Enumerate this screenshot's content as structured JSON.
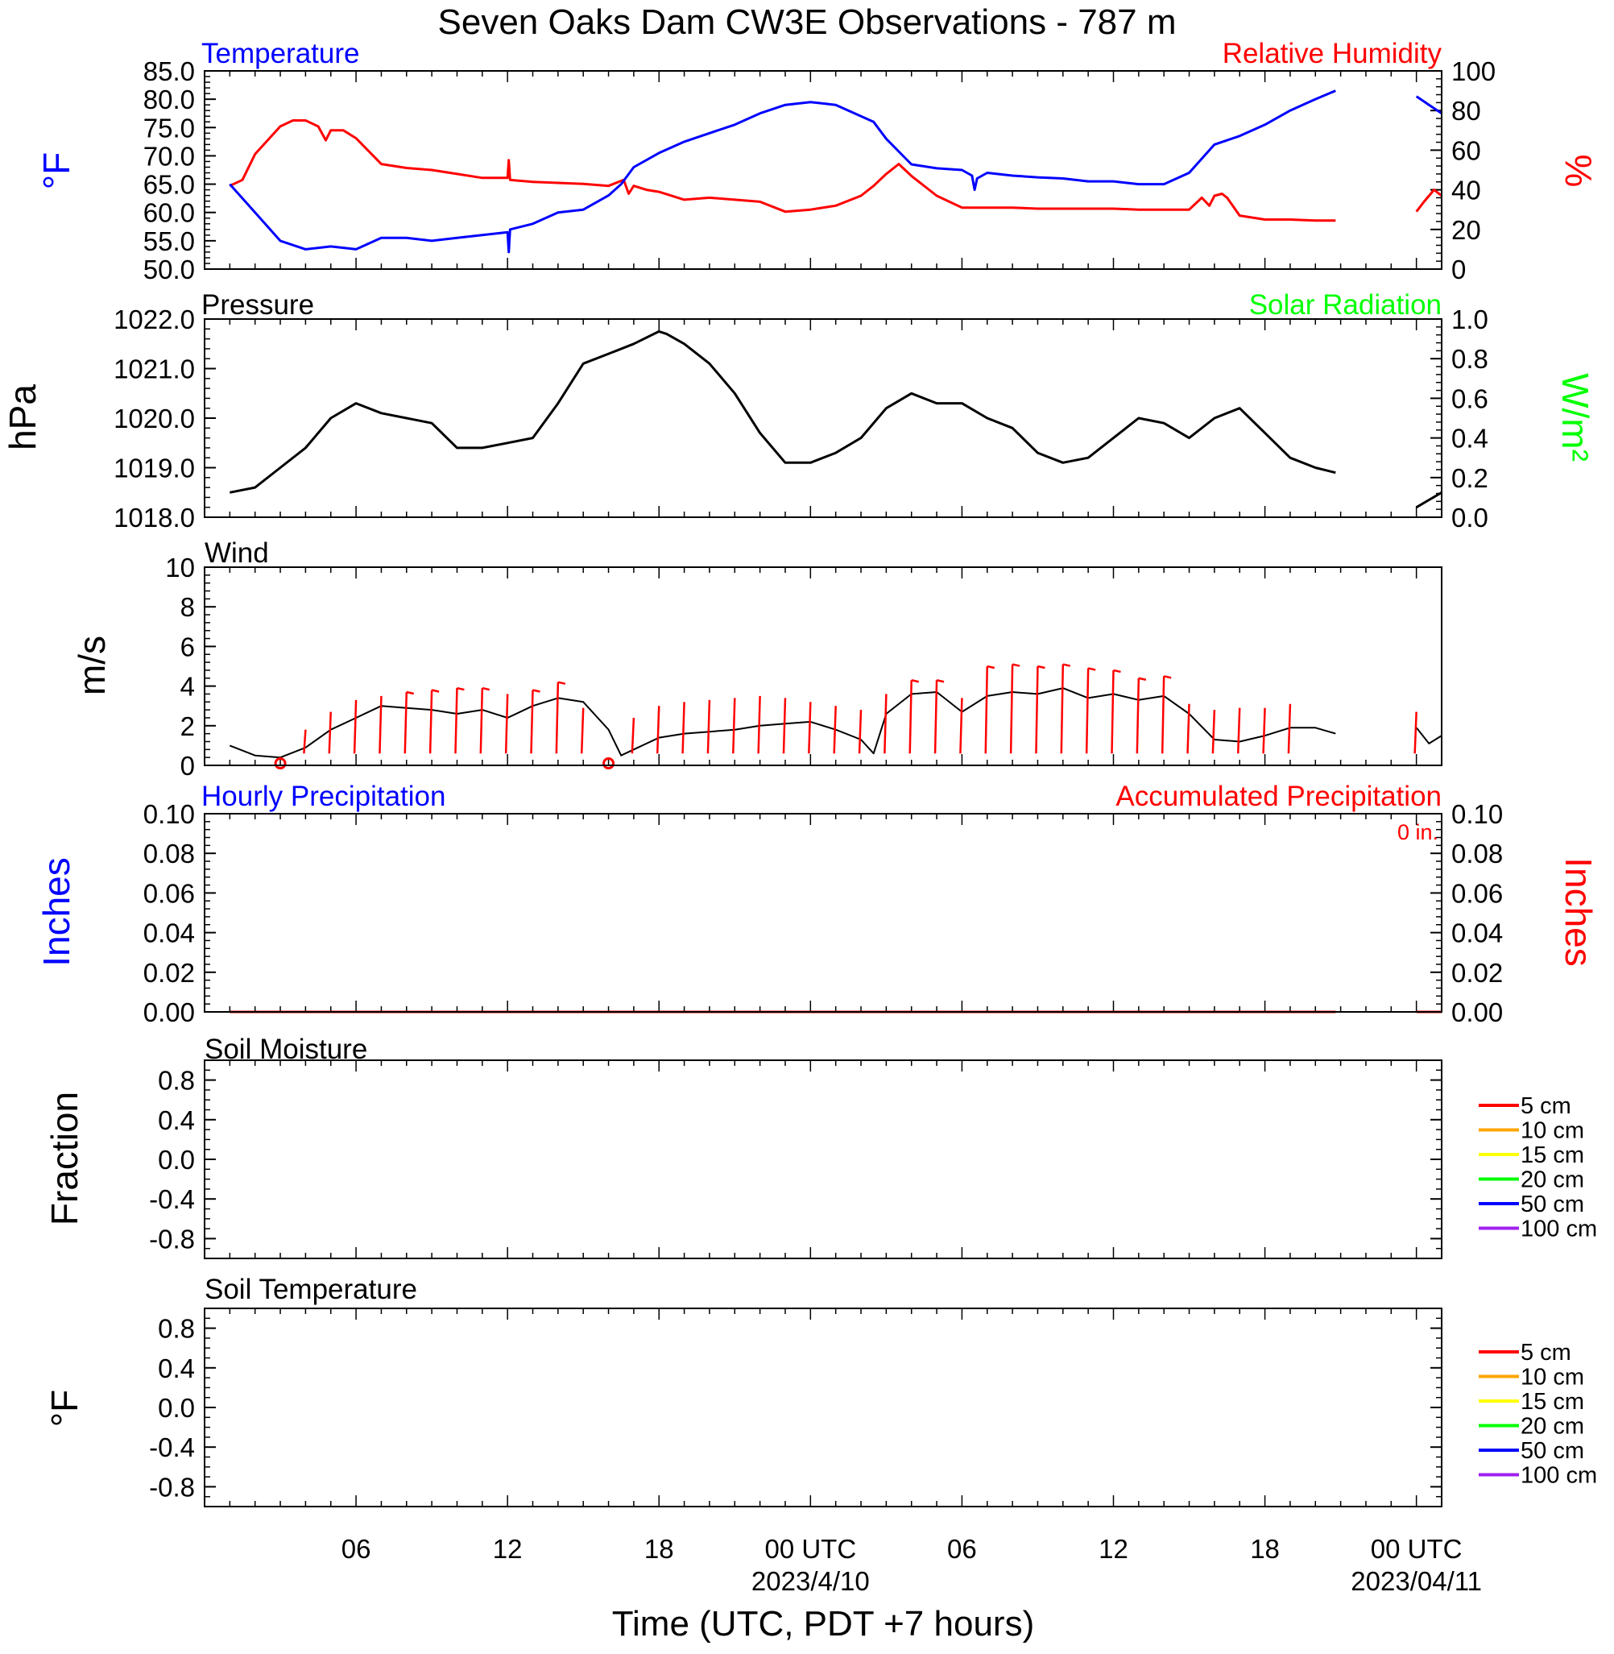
{
  "title": "Seven Oaks Dam CW3E Observations - 787 m",
  "x_axis": {
    "label": "Time (UTC, PDT +7 hours)",
    "start": "2023-04-09T01:00Z",
    "end": "2023-04-11T02:00Z",
    "ticks": [
      {
        "hour": 5,
        "label": "06"
      },
      {
        "hour": 11,
        "label": "12"
      },
      {
        "hour": 17,
        "label": "18"
      },
      {
        "hour": 23,
        "label": "00 UTC",
        "date": "2023/4/10"
      },
      {
        "hour": 29,
        "label": "06"
      },
      {
        "hour": 35,
        "label": "12"
      },
      {
        "hour": 41,
        "label": "18"
      },
      {
        "hour": 47,
        "label": "00 UTC",
        "date": "2023/04/11"
      }
    ]
  },
  "colors": {
    "temperature": "#0000ff",
    "humidity": "#ff0000",
    "pressure": "#000000",
    "solar": "#00ff00",
    "wind": "#000000",
    "wind_barb": "#ff0000",
    "hourly_precip": "#0000ff",
    "accum_precip": "#ff0000"
  },
  "panels": {
    "temperature": {
      "title_left": "Temperature",
      "title_right": "Relative Humidity",
      "ylabel_left": "°F",
      "ylabel_right": "%",
      "left_ticks": [
        "50.0",
        "55.0",
        "60.0",
        "65.0",
        "70.0",
        "75.0",
        "80.0",
        "85.0"
      ],
      "right_ticks": [
        "0",
        "20",
        "40",
        "60",
        "80",
        "100"
      ]
    },
    "pressure": {
      "title_left": "Pressure",
      "title_right": "Solar Radiation",
      "ylabel_left": "hPa",
      "ylabel_right": "W/m²",
      "left_ticks": [
        "1018.0",
        "1019.0",
        "1020.0",
        "1021.0",
        "1022.0"
      ],
      "right_ticks": [
        "0.0",
        "0.2",
        "0.4",
        "0.6",
        "0.8",
        "1.0"
      ]
    },
    "wind": {
      "title_left": "Wind",
      "ylabel_left": "m/s",
      "left_ticks": [
        "0",
        "2",
        "4",
        "6",
        "8",
        "10"
      ]
    },
    "precip": {
      "title_left": "Hourly Precipitation",
      "title_right": "Accumulated Precipitation",
      "accum_total": "0 in.",
      "ylabel_left": "Inches",
      "ylabel_right": "Inches",
      "left_ticks": [
        "0.00",
        "0.02",
        "0.04",
        "0.06",
        "0.08",
        "0.10"
      ],
      "right_ticks": [
        "0.00",
        "0.02",
        "0.04",
        "0.06",
        "0.08",
        "0.10"
      ]
    },
    "soil_moisture": {
      "title_left": "Soil Moisture",
      "ylabel_left": "Fraction",
      "left_ticks": [
        "-0.8",
        "-0.4",
        "0.0",
        "0.4",
        "0.8"
      ]
    },
    "soil_temperature": {
      "title_left": "Soil Temperature",
      "ylabel_left": "°F",
      "left_ticks": [
        "-0.8",
        "-0.4",
        "0.0",
        "0.4",
        "0.8"
      ]
    }
  },
  "soil_legend": [
    {
      "label": "5 cm",
      "color": "#ff0000"
    },
    {
      "label": "10 cm",
      "color": "#ffa500"
    },
    {
      "label": "15 cm",
      "color": "#ffff00"
    },
    {
      "label": "20 cm",
      "color": "#00ff00"
    },
    {
      "label": "50 cm",
      "color": "#0000ff"
    },
    {
      "label": "100 cm",
      "color": "#a020f0"
    }
  ],
  "chart_data": [
    {
      "type": "line",
      "title": "Temperature",
      "ylabel": "°F",
      "ylim": [
        50,
        85
      ],
      "x_units": "hours since 2023-04-09 01:00 UTC",
      "series": [
        {
          "name": "Temperature",
          "x": [
            0,
            1,
            2,
            3,
            4,
            5,
            6,
            7,
            8,
            9,
            10,
            11,
            11.05,
            11.1,
            12,
            13,
            14,
            15,
            15.5,
            16,
            17,
            18,
            19,
            20,
            21,
            22,
            23,
            24,
            25,
            25.5,
            26,
            27,
            28,
            29,
            29.4,
            29.5,
            29.6,
            30,
            31,
            32,
            33,
            34,
            35,
            36,
            37,
            38,
            39,
            40,
            41,
            42,
            43,
            43.8
          ],
          "y": [
            65,
            60,
            55,
            53.5,
            54,
            53.5,
            55.5,
            55.5,
            55,
            55.5,
            56,
            56.5,
            53,
            57,
            58,
            60,
            60.5,
            63,
            65,
            68,
            70.5,
            72.5,
            74,
            75.5,
            77.5,
            79,
            79.5,
            79,
            77,
            76,
            73,
            68.5,
            67.8,
            67.5,
            66.5,
            64,
            66,
            67,
            66.5,
            66.2,
            66,
            65.5,
            65.5,
            65,
            65,
            67,
            72,
            73.5,
            75.5,
            78,
            80,
            81.5
          ]
        },
        {
          "name": "Temperature",
          "x": [
            47,
            47.5,
            48
          ],
          "y": [
            80.5,
            79,
            77.5
          ]
        }
      ]
    },
    {
      "type": "line",
      "title": "Relative Humidity",
      "ylabel": "%",
      "ylim": [
        0,
        100
      ],
      "x_units": "hours since 2023-04-09 01:00 UTC",
      "series": [
        {
          "name": "Relative Humidity",
          "x": [
            0,
            0.5,
            1,
            2,
            2.5,
            3,
            3.5,
            3.8,
            4,
            4.5,
            5,
            6,
            7,
            8,
            9,
            10,
            11,
            11.05,
            11.1,
            12,
            13,
            14,
            15,
            15.5,
            15.6,
            15.8,
            16,
            16.5,
            17,
            18,
            19,
            20,
            21,
            22,
            23,
            24,
            25,
            25.5,
            26,
            26.5,
            27,
            28,
            29,
            30,
            31,
            32,
            33,
            34,
            35,
            36,
            37,
            38,
            38.5,
            38.8,
            39,
            39.3,
            39.5,
            40,
            41,
            42,
            43,
            43.8
          ],
          "y": [
            42,
            45,
            58,
            72,
            75,
            75,
            72,
            65,
            70,
            70,
            66,
            53,
            51,
            50,
            48,
            46,
            46,
            55,
            45,
            44,
            43.5,
            43,
            42,
            44.5,
            45,
            38,
            42,
            40,
            39,
            35,
            36,
            35,
            34,
            29,
            30,
            32,
            37,
            42,
            48,
            53,
            47,
            37,
            31,
            31,
            31,
            30.5,
            30.5,
            30.5,
            30.5,
            30,
            30,
            30,
            36,
            32,
            37,
            38,
            36,
            27,
            25,
            25,
            24.5,
            24.5
          ]
        },
        {
          "name": "Relative Humidity",
          "x": [
            47,
            47.3,
            47.7,
            48
          ],
          "y": [
            29,
            34,
            40,
            37
          ]
        }
      ]
    },
    {
      "type": "line",
      "title": "Pressure",
      "ylabel": "hPa",
      "ylim": [
        1018,
        1022
      ],
      "x_units": "hours since 2023-04-09 01:00 UTC",
      "series": [
        {
          "name": "Pressure",
          "x": [
            0,
            1,
            2,
            3,
            4,
            5,
            6,
            7,
            8,
            9,
            10,
            11,
            12,
            13,
            14,
            15,
            16,
            17,
            17.3,
            18,
            19,
            20,
            21,
            22,
            23,
            24,
            25,
            26,
            27,
            28,
            29,
            30,
            31,
            32,
            33,
            34,
            35,
            36,
            37,
            38,
            39,
            40,
            41,
            42,
            43,
            43.8
          ],
          "y": [
            1018.5,
            1018.6,
            1019.0,
            1019.4,
            1020.0,
            1020.3,
            1020.1,
            1020.0,
            1019.9,
            1019.4,
            1019.4,
            1019.5,
            1019.6,
            1020.3,
            1021.1,
            1021.3,
            1021.5,
            1021.75,
            1021.7,
            1021.5,
            1021.1,
            1020.5,
            1019.7,
            1019.1,
            1019.1,
            1019.3,
            1019.6,
            1020.2,
            1020.5,
            1020.3,
            1020.3,
            1020.0,
            1019.8,
            1019.3,
            1019.1,
            1019.2,
            1019.6,
            1020.0,
            1019.9,
            1019.6,
            1020.0,
            1020.2,
            1019.7,
            1019.2,
            1019.0,
            1018.9
          ]
        },
        {
          "name": "Pressure",
          "x": [
            47,
            47.5,
            48
          ],
          "y": [
            1018.2,
            1018.35,
            1018.5
          ]
        }
      ]
    },
    {
      "type": "line",
      "title": "Wind",
      "ylabel": "m/s",
      "ylim": [
        0,
        10
      ],
      "x_units": "hours since 2023-04-09 01:00 UTC",
      "series": [
        {
          "name": "Wind",
          "x": [
            0,
            1,
            2,
            3,
            4,
            5,
            6,
            7,
            8,
            9,
            10,
            11,
            12,
            13,
            14,
            15,
            15.5,
            16,
            17,
            18,
            19,
            20,
            21,
            22,
            23,
            24,
            25,
            25.5,
            26,
            27,
            28,
            29,
            30,
            31,
            32,
            33,
            34,
            35,
            36,
            37,
            38,
            39,
            40,
            41,
            42,
            43,
            43.8
          ],
          "y": [
            1.0,
            0.5,
            0.4,
            0.9,
            1.8,
            2.4,
            3.0,
            2.9,
            2.8,
            2.6,
            2.8,
            2.4,
            3.0,
            3.4,
            3.2,
            1.8,
            0.5,
            0.8,
            1.4,
            1.6,
            1.7,
            1.8,
            2.0,
            2.1,
            2.2,
            1.8,
            1.3,
            0.6,
            2.6,
            3.6,
            3.7,
            2.7,
            3.5,
            3.7,
            3.6,
            3.9,
            3.4,
            3.6,
            3.3,
            3.5,
            2.6,
            1.3,
            1.2,
            1.5,
            1.9,
            1.9,
            1.6
          ]
        },
        {
          "name": "Wind",
          "x": [
            47,
            47.5,
            48
          ],
          "y": [
            1.9,
            1.1,
            1.5
          ]
        }
      ],
      "barbs": {
        "x": [
          2,
          3,
          4,
          5,
          6,
          7,
          8,
          9,
          10,
          11,
          12,
          13,
          14,
          15,
          16,
          17,
          18,
          19,
          20,
          21,
          22,
          23,
          24,
          25,
          26,
          27,
          28,
          29,
          30,
          31,
          32,
          33,
          34,
          35,
          36,
          37,
          38,
          39,
          40,
          41,
          42,
          47
        ],
        "speed": [
          0,
          1.2,
          2.1,
          2.7,
          2.9,
          3.1,
          3.2,
          3.3,
          3.3,
          3.0,
          3.2,
          3.6,
          2.3,
          0.3,
          1.8,
          2.4,
          2.6,
          2.7,
          2.8,
          2.9,
          2.8,
          2.6,
          2.4,
          2.2,
          3.0,
          3.7,
          3.7,
          2.8,
          4.4,
          4.5,
          4.4,
          4.5,
          4.3,
          4.2,
          3.8,
          3.9,
          2.5,
          2.2,
          2.3,
          2.3,
          2.5,
          2.1
        ]
      }
    },
    {
      "type": "line",
      "title": "Hourly Precipitation",
      "ylabel": "Inches",
      "ylim": [
        0,
        0.1
      ],
      "x_units": "hours since 2023-04-09 01:00 UTC",
      "series": [
        {
          "name": "Accumulated Precipitation",
          "x": [
            0,
            43.8
          ],
          "y": [
            0,
            0
          ]
        },
        {
          "name": "Accumulated Precipitation",
          "x": [
            47,
            48
          ],
          "y": [
            0,
            0
          ]
        }
      ]
    },
    {
      "type": "line",
      "title": "Soil Moisture",
      "ylabel": "Fraction",
      "ylim": [
        -1,
        1
      ],
      "series": []
    },
    {
      "type": "line",
      "title": "Soil Temperature",
      "ylabel": "°F",
      "ylim": [
        -1,
        1
      ],
      "series": []
    }
  ]
}
